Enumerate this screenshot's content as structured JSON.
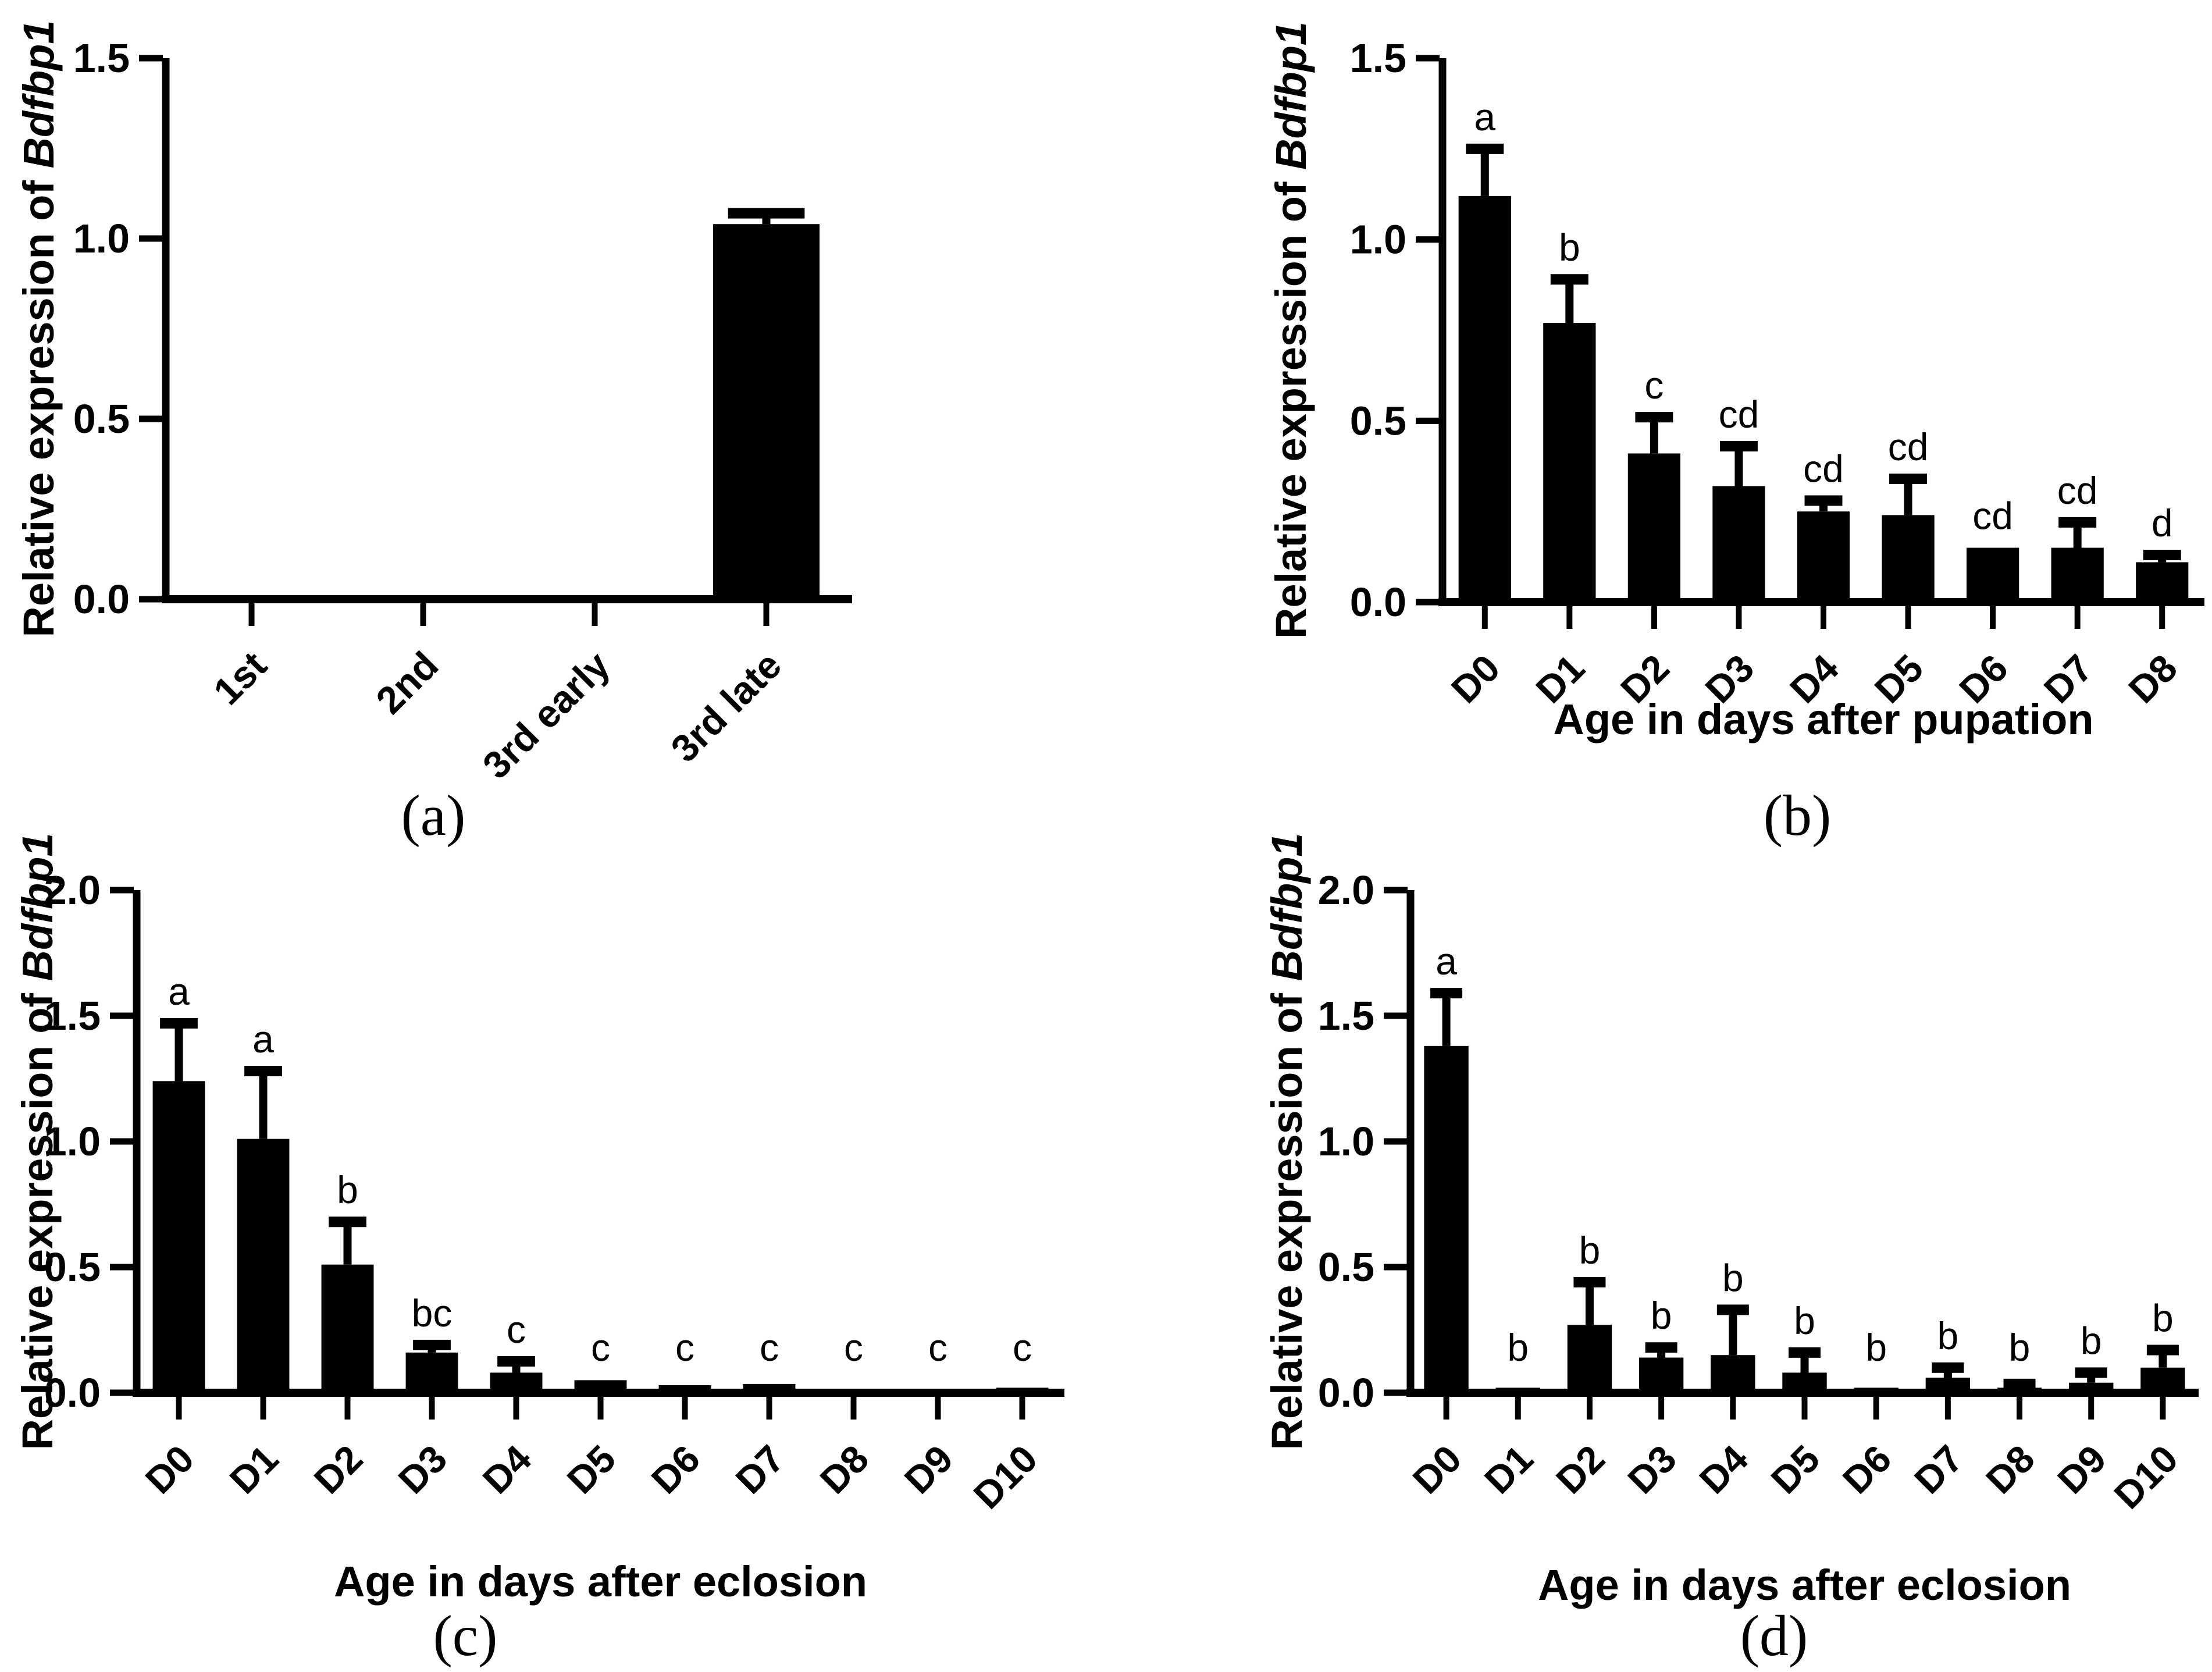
{
  "chart_data": [
    {
      "id": "a",
      "type": "bar",
      "caption": "(a)",
      "ylabel_prefix": "Relative expression of ",
      "ylabel_gene": "Bdfbp1",
      "xlabel": "",
      "ylim": [
        0,
        1.5
      ],
      "yticks": [
        "0.0",
        "0.5",
        "1.0",
        "1.5"
      ],
      "categories": [
        "1st",
        "2nd",
        "3rd early",
        "3rd late"
      ],
      "values": [
        0,
        0,
        0,
        1.04
      ],
      "errors": [
        0,
        0,
        0,
        0.03
      ],
      "letters": [
        "",
        "",
        "",
        ""
      ],
      "bar_color": "#000000",
      "legend": "none",
      "grid": false
    },
    {
      "id": "b",
      "type": "bar",
      "caption": "(b)",
      "ylabel_prefix": "Relative expression of ",
      "ylabel_gene": "Bdfbp1",
      "xlabel": "Age in days after pupation",
      "ylim": [
        0,
        1.5
      ],
      "yticks": [
        "0.0",
        "0.5",
        "1.0",
        "1.5"
      ],
      "categories": [
        "D0",
        "D1",
        "D2",
        "D3",
        "D4",
        "D5",
        "D6",
        "D7",
        "D8"
      ],
      "values": [
        1.12,
        0.77,
        0.41,
        0.32,
        0.25,
        0.24,
        0.15,
        0.15,
        0.11
      ],
      "errors": [
        0.13,
        0.12,
        0.1,
        0.11,
        0.03,
        0.1,
        0.01,
        0.07,
        0.02
      ],
      "letters": [
        "a",
        "b",
        "c",
        "cd",
        "cd",
        "cd",
        "cd",
        "cd",
        "d"
      ],
      "bar_color": "#000000",
      "legend": "none",
      "grid": false
    },
    {
      "id": "c",
      "type": "bar",
      "caption": "(c)",
      "ylabel_prefix": "Relative expression of ",
      "ylabel_gene": "Bdfbp1",
      "xlabel": "Age in days after eclosion",
      "ylim": [
        0,
        2.0
      ],
      "yticks": [
        "0.0",
        "0.5",
        "1.0",
        "1.5",
        "2.0"
      ],
      "categories": [
        "D0",
        "D1",
        "D2",
        "D3",
        "D4",
        "D5",
        "D6",
        "D7",
        "D8",
        "D9",
        "D10"
      ],
      "values": [
        1.24,
        1.01,
        0.51,
        0.16,
        0.08,
        0.05,
        0.03,
        0.035,
        0.012,
        0.015,
        0.02
      ],
      "errors": [
        0.23,
        0.27,
        0.17,
        0.03,
        0.045,
        0.01,
        0.01,
        0.01,
        0.01,
        0.01,
        0.01
      ],
      "letters": [
        "a",
        "a",
        "b",
        "bc",
        "c",
        "c",
        "c",
        "c",
        "c",
        "c",
        "c"
      ],
      "bar_color": "#000000",
      "legend": "none",
      "grid": false
    },
    {
      "id": "d",
      "type": "bar",
      "caption": "(d)",
      "ylabel_prefix": "Relative expression of ",
      "ylabel_gene": "Bdfbp1",
      "xlabel": "Age in days after eclosion",
      "ylim": [
        0,
        2.0
      ],
      "yticks": [
        "0.0",
        "0.5",
        "1.0",
        "1.5",
        "2.0"
      ],
      "categories": [
        "D0",
        "D1",
        "D2",
        "D3",
        "D4",
        "D5",
        "D6",
        "D7",
        "D8",
        "D9",
        "D10"
      ],
      "values": [
        1.38,
        0.02,
        0.27,
        0.14,
        0.15,
        0.08,
        0.02,
        0.06,
        0.02,
        0.04,
        0.1
      ],
      "errors": [
        0.21,
        0.01,
        0.17,
        0.04,
        0.18,
        0.08,
        0.01,
        0.04,
        0.015,
        0.04,
        0.07
      ],
      "letters": [
        "a",
        "b",
        "b",
        "b",
        "b",
        "b",
        "b",
        "b",
        "b",
        "b",
        "b"
      ],
      "bar_color": "#000000",
      "legend": "none",
      "grid": false
    }
  ]
}
